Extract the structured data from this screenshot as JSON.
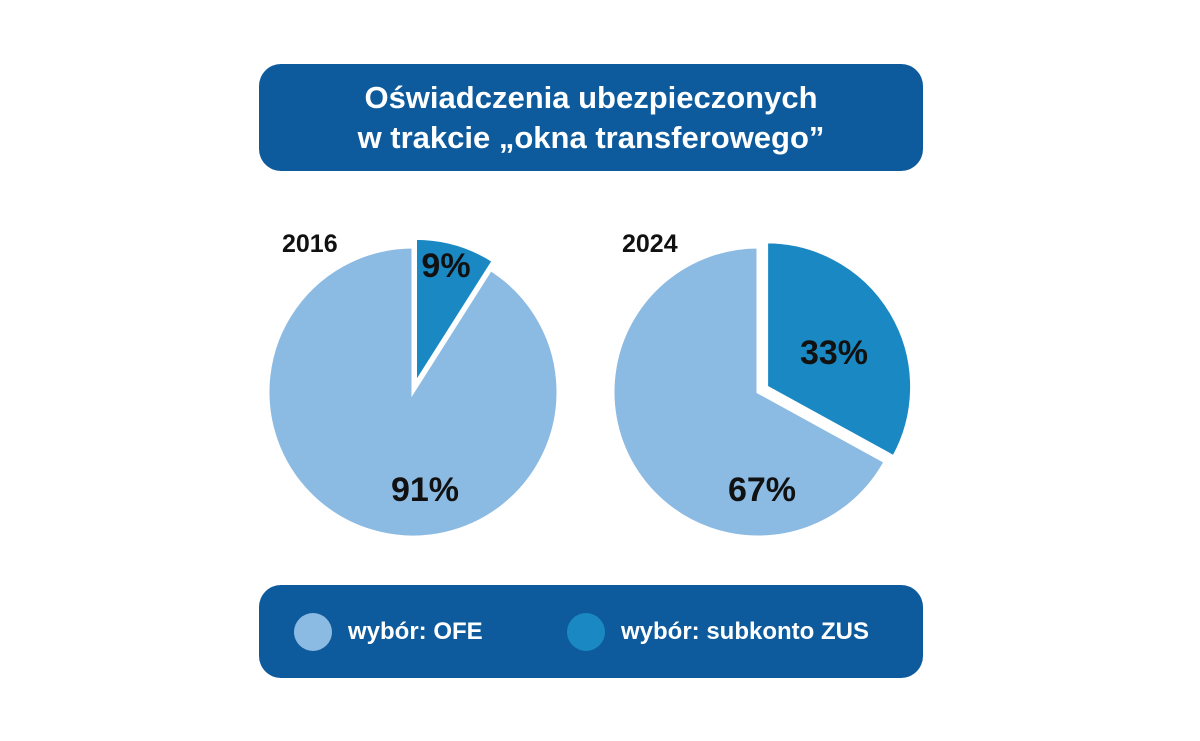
{
  "title": {
    "line1": "Oświadczenia ubezpieczonych",
    "line2": "w trakcie „okna transferowego”"
  },
  "legend": {
    "items": [
      {
        "label": "wybór: OFE",
        "color": "#8bbae3"
      },
      {
        "label": "wybór: subkonto ZUS",
        "color": "#1a88c2"
      }
    ]
  },
  "colors": {
    "ofe": "#8bbae3",
    "zus": "#1a88c2",
    "frame": "#0d5a9c"
  },
  "chart_data": [
    {
      "type": "pie",
      "title": "2016",
      "slices": [
        {
          "name": "wybór: subkonto ZUS",
          "value": 9,
          "label": "9%"
        },
        {
          "name": "wybór: OFE",
          "value": 91,
          "label": "91%"
        }
      ],
      "exploded": "wybór: subkonto ZUS",
      "legend_position": "bottom"
    },
    {
      "type": "pie",
      "title": "2024",
      "slices": [
        {
          "name": "wybór: subkonto ZUS",
          "value": 33,
          "label": "33%"
        },
        {
          "name": "wybór: OFE",
          "value": 67,
          "label": "67%"
        }
      ],
      "exploded": "wybór: subkonto ZUS",
      "legend_position": "bottom"
    }
  ]
}
